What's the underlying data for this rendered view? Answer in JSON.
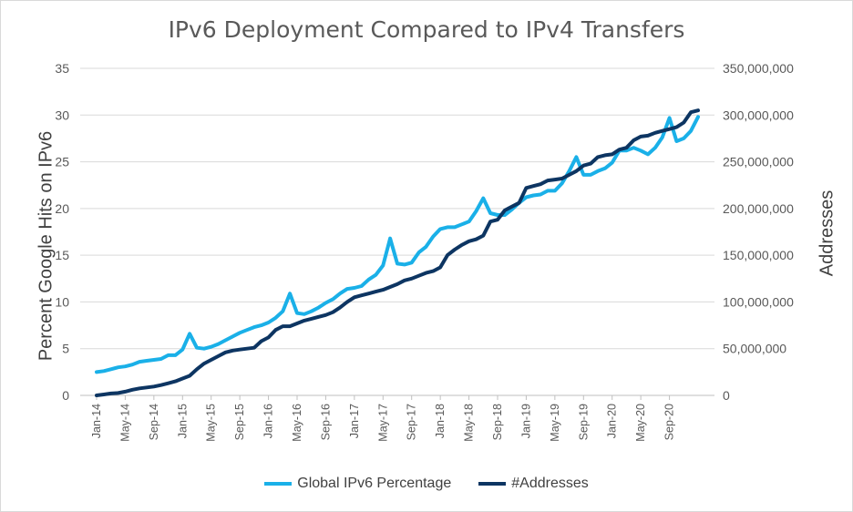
{
  "chart_data": {
    "type": "line",
    "title": "IPv6 Deployment Compared to IPv4 Transfers",
    "ylabel": "Percent Google Hits on IPv6",
    "y2label": "Addresses",
    "ylim": [
      0,
      35
    ],
    "y2lim": [
      0,
      350000000
    ],
    "yticks": [
      "0",
      "5",
      "10",
      "15",
      "20",
      "25",
      "30",
      "35"
    ],
    "y2ticks": [
      "0",
      "50,000,000",
      "100,000,000",
      "150,000,000",
      "200,000,000",
      "250,000,000",
      "300,000,000",
      "350,000,000"
    ],
    "xticks": [
      "Jan-14",
      "May-14",
      "Sep-14",
      "Jan-15",
      "May-15",
      "Sep-15",
      "Jan-16",
      "May-16",
      "Sep-16",
      "Jan-17",
      "May-17",
      "Sep-17",
      "Jan-18",
      "May-18",
      "Sep-18",
      "Jan-19",
      "May-19",
      "Sep-19",
      "Jan-20",
      "May-20",
      "Sep-20"
    ],
    "grid": true,
    "legend_position": "bottom",
    "series": [
      {
        "name": "Global IPv6 Percentage",
        "axis": "left",
        "color": "#1ab0e8",
        "values": [
          2.5,
          2.6,
          2.8,
          3.0,
          3.1,
          3.3,
          3.6,
          3.7,
          3.8,
          3.9,
          4.3,
          4.3,
          4.9,
          6.6,
          5.1,
          5.0,
          5.2,
          5.5,
          5.9,
          6.3,
          6.7,
          7.0,
          7.3,
          7.5,
          7.8,
          8.3,
          9.0,
          10.9,
          8.8,
          8.7,
          9.0,
          9.4,
          9.9,
          10.3,
          10.9,
          11.4,
          11.5,
          11.7,
          12.4,
          12.9,
          13.9,
          16.8,
          14.1,
          14.0,
          14.2,
          15.3,
          15.9,
          17.0,
          17.8,
          18.0,
          18.0,
          18.3,
          18.6,
          19.7,
          21.1,
          19.5,
          19.3,
          19.3,
          19.9,
          20.6,
          21.2,
          21.4,
          21.5,
          21.9,
          21.9,
          22.7,
          24.0,
          25.5,
          23.6,
          23.6,
          24.0,
          24.3,
          24.9,
          26.2,
          26.2,
          26.5,
          26.2,
          25.8,
          26.5,
          27.6,
          29.7,
          27.2,
          27.5,
          28.3,
          29.8
        ]
      },
      {
        "name": "#Addresses",
        "axis": "right",
        "color": "#0d3562",
        "values": [
          0,
          1000000,
          2000000,
          2500000,
          4000000,
          6000000,
          7500000,
          8500000,
          9500000,
          11000000,
          13000000,
          15000000,
          18000000,
          21000000,
          28000000,
          34000000,
          38000000,
          42000000,
          46000000,
          48000000,
          49000000,
          50000000,
          51000000,
          58000000,
          62000000,
          70000000,
          74000000,
          74000000,
          77000000,
          80000000,
          82000000,
          84000000,
          86000000,
          89000000,
          94000000,
          100000000,
          105000000,
          107000000,
          109000000,
          111000000,
          113000000,
          116000000,
          119000000,
          123000000,
          125000000,
          128000000,
          131000000,
          133000000,
          137000000,
          150000000,
          156000000,
          161000000,
          165000000,
          167000000,
          171000000,
          186000000,
          188000000,
          198000000,
          202000000,
          206000000,
          222000000,
          224000000,
          226000000,
          230000000,
          231000000,
          232000000,
          236000000,
          240000000,
          246000000,
          248000000,
          255000000,
          257000000,
          258000000,
          263000000,
          265000000,
          273000000,
          277000000,
          278000000,
          281000000,
          283000000,
          285000000,
          287000000,
          292000000,
          303000000,
          305000000
        ]
      }
    ]
  }
}
